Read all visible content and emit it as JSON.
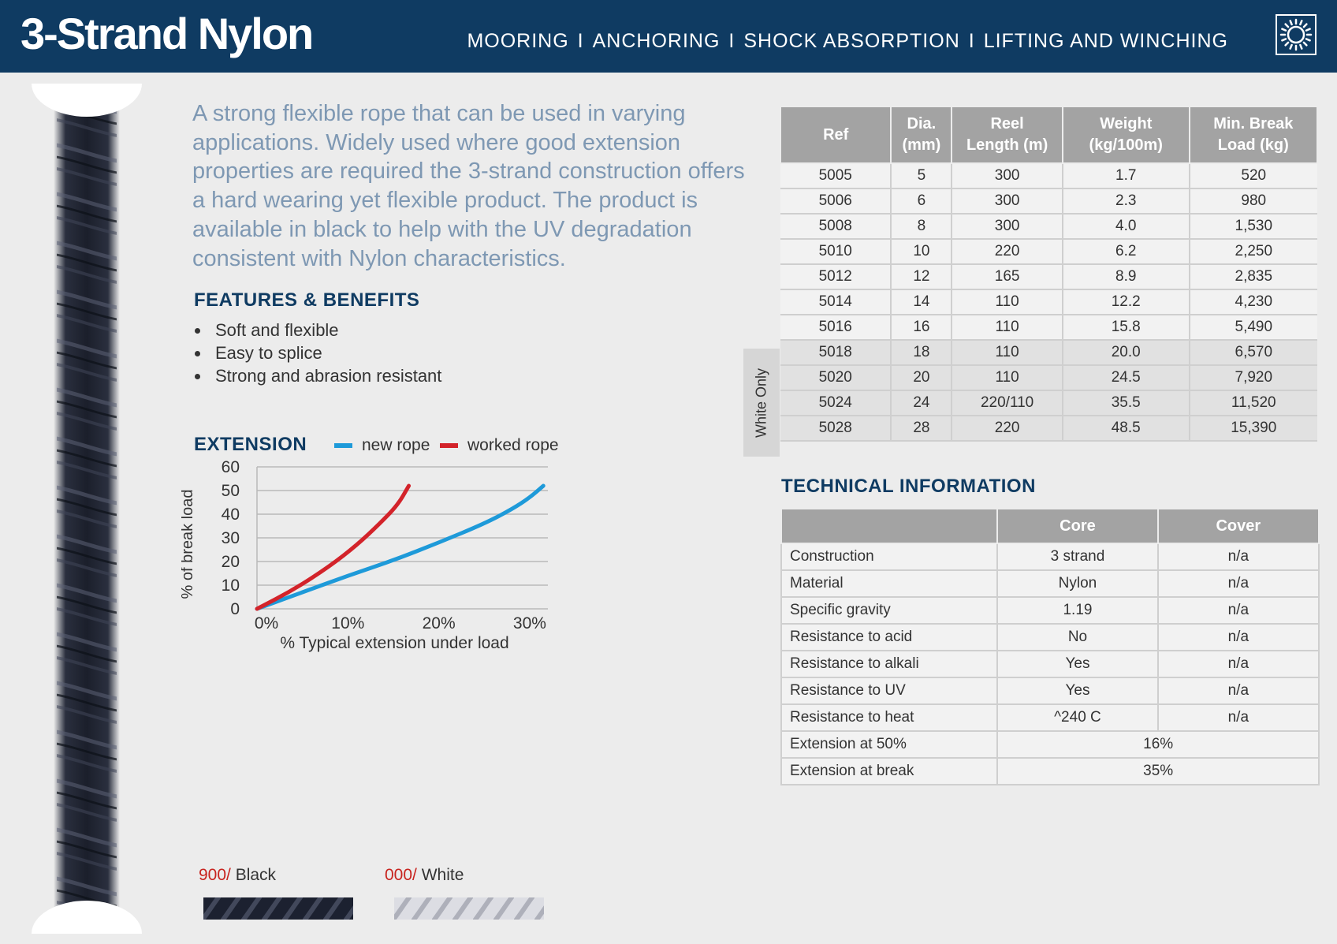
{
  "header": {
    "title": "3-Strand Nylon",
    "uses": [
      "MOORING",
      "ANCHORING",
      "SHOCK ABSORPTION",
      "LIFTING AND WINCHING"
    ],
    "separator": "I",
    "badge_icon": "uv-sun-icon",
    "color": "#0f3b62"
  },
  "intro": "A strong flexible rope that can be used in varying applications. Widely used where good extension properties are required the 3-strand construction offers a hard wearing yet flexible product. The product is available in black to help with the UV degradation consistent with Nylon characteristics.",
  "features": {
    "heading": "FEATURES & BENEFITS",
    "items": [
      "Soft and flexible",
      "Easy to splice",
      "Strong and abrasion resistant"
    ]
  },
  "extension": {
    "heading": "EXTENSION",
    "legend": {
      "new_rope": "new rope",
      "worked_rope": "worked rope"
    }
  },
  "chart_data": {
    "type": "line",
    "title": "EXTENSION",
    "xlabel": "% Typical extension under load",
    "ylabel": "% of break load",
    "xlim": [
      0,
      32
    ],
    "ylim": [
      0,
      60
    ],
    "x_ticks": [
      "0%",
      "10%",
      "20%",
      "30%"
    ],
    "x_tick_values": [
      0,
      10,
      20,
      30
    ],
    "y_ticks": [
      "0",
      "10",
      "20",
      "30",
      "40",
      "50",
      "60"
    ],
    "y_tick_values": [
      0,
      10,
      20,
      30,
      40,
      50,
      60
    ],
    "grid": true,
    "legend_position": "top",
    "series": [
      {
        "name": "new rope",
        "color": "#1e9ad9",
        "x": [
          0,
          5,
          10,
          15,
          20,
          25,
          28,
          30,
          31.5
        ],
        "y": [
          0,
          7,
          14,
          20.5,
          28,
          36,
          42,
          47,
          52
        ]
      },
      {
        "name": "worked rope",
        "color": "#d3232a",
        "x": [
          0,
          4,
          8,
          11,
          13.5,
          15.5,
          16.7
        ],
        "y": [
          0,
          8,
          18,
          27,
          36,
          44,
          52
        ]
      }
    ]
  },
  "spec_table": {
    "headers": [
      "Ref",
      "Dia.\n(mm)",
      "Reel\nLength (m)",
      "Weight\n(kg/100m)",
      "Min. Break\nLoad (kg)"
    ],
    "rows": [
      [
        "5005",
        "5",
        "300",
        "1.7",
        "520"
      ],
      [
        "5006",
        "6",
        "300",
        "2.3",
        "980"
      ],
      [
        "5008",
        "8",
        "300",
        "4.0",
        "1,530"
      ],
      [
        "5010",
        "10",
        "220",
        "6.2",
        "2,250"
      ],
      [
        "5012",
        "12",
        "165",
        "8.9",
        "2,835"
      ],
      [
        "5014",
        "14",
        "110",
        "12.2",
        "4,230"
      ],
      [
        "5016",
        "16",
        "110",
        "15.8",
        "5,490"
      ],
      [
        "5018",
        "18",
        "110",
        "20.0",
        "6,570"
      ],
      [
        "5020",
        "20",
        "110",
        "24.5",
        "7,920"
      ],
      [
        "5024",
        "24",
        "220/110",
        "35.5",
        "11,520"
      ],
      [
        "5028",
        "28",
        "220",
        "48.5",
        "15,390"
      ]
    ],
    "white_only_label": "White Only",
    "white_only_from_row": 7
  },
  "technical": {
    "heading": "TECHNICAL INFORMATION",
    "headers": [
      "",
      "Core",
      "Cover"
    ],
    "rows": [
      [
        "Construction",
        "3 strand",
        "n/a"
      ],
      [
        "Material",
        "Nylon",
        "n/a"
      ],
      [
        "Specific gravity",
        "1.19",
        "n/a"
      ],
      [
        "Resistance to acid",
        "No",
        "n/a"
      ],
      [
        "Resistance to alkali",
        "Yes",
        "n/a"
      ],
      [
        "Resistance to UV",
        "Yes",
        "n/a"
      ],
      [
        "Resistance to heat",
        "^240 C",
        "n/a"
      ]
    ],
    "merged_rows": [
      [
        "Extension at 50%",
        "16%"
      ],
      [
        "Extension at break",
        "35%"
      ]
    ]
  },
  "colours": [
    {
      "code": "900/",
      "name": " Black",
      "swatch": "#1c2130"
    },
    {
      "code": "000/",
      "name": " White",
      "swatch": "#dcdde3"
    }
  ]
}
